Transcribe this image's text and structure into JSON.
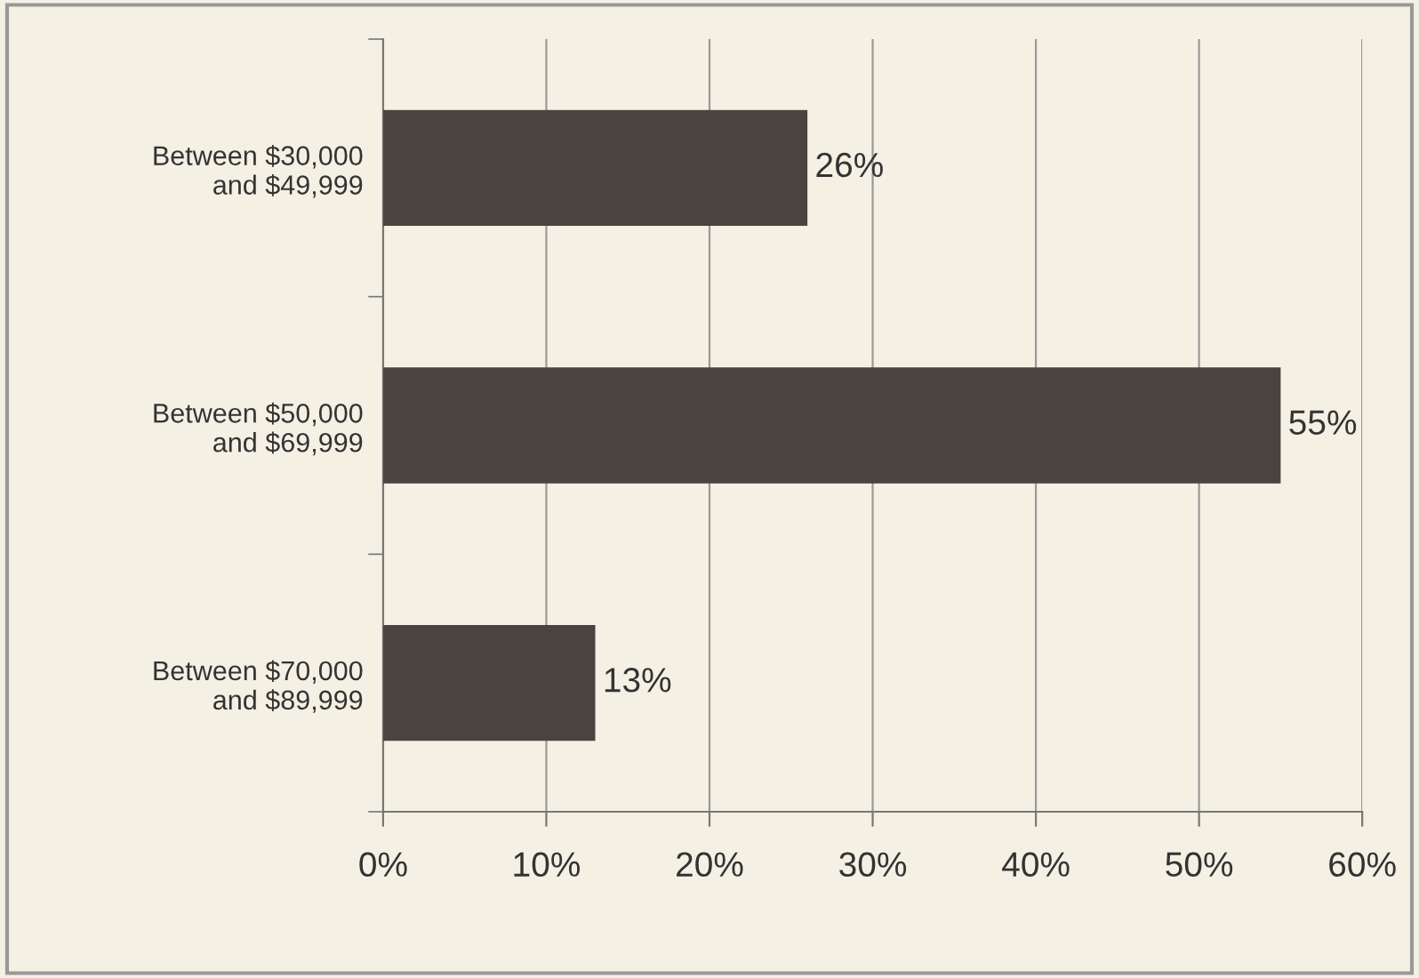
{
  "chart_data": {
    "type": "bar",
    "orientation": "horizontal",
    "categories": [
      "Between $30,000\nand $49,999",
      "Between $50,000\nand $69,999",
      "Between $70,000\nand $89,999"
    ],
    "values": [
      26,
      55,
      13
    ],
    "color": "#4a4340",
    "value_labels": [
      "26%",
      "55%",
      "13%"
    ],
    "xlim": [
      0,
      60
    ],
    "xticks": [
      {
        "value": 0,
        "label": "0%"
      },
      {
        "value": 10,
        "label": "10%"
      },
      {
        "value": 20,
        "label": "20%"
      },
      {
        "value": 30,
        "label": "30%"
      },
      {
        "value": 40,
        "label": "40%"
      },
      {
        "value": 50,
        "label": "50%"
      },
      {
        "value": 60,
        "label": "60%"
      }
    ],
    "grid": "x",
    "legend": false
  }
}
